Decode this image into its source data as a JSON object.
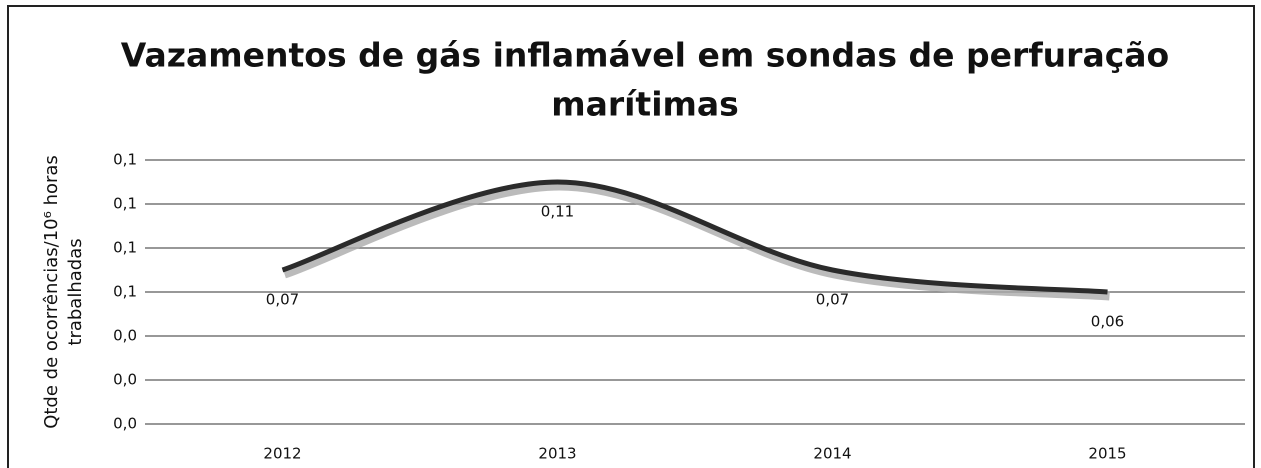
{
  "chart_data": {
    "type": "line",
    "title": [
      "Vazamentos de gás inflamável em sondas de perfuração",
      "marítimas"
    ],
    "ylabel": [
      "Qtde de ocorrências/10⁶ horas",
      "trabalhadas"
    ],
    "categories": [
      "2012",
      "2013",
      "2014",
      "2015"
    ],
    "series": [
      {
        "name": null,
        "color": "#2b2b2b",
        "values": [
          0.07,
          0.11,
          0.07,
          0.06
        ],
        "value_labels": [
          "0,07",
          "0,11",
          "0,07",
          "0,06"
        ]
      }
    ],
    "ylim": [
      0,
      0.12
    ],
    "yticks": [
      {
        "value": 0,
        "label": "0,0"
      },
      {
        "value": 0.02,
        "label": "0,0"
      },
      {
        "value": 0.04,
        "label": "0,0"
      },
      {
        "value": 0.06,
        "label": "0,1"
      },
      {
        "value": 0.08,
        "label": "0,1"
      },
      {
        "value": 0.1,
        "label": "0,1"
      },
      {
        "value": 0.12,
        "label": "0,1"
      }
    ],
    "grid": true
  }
}
